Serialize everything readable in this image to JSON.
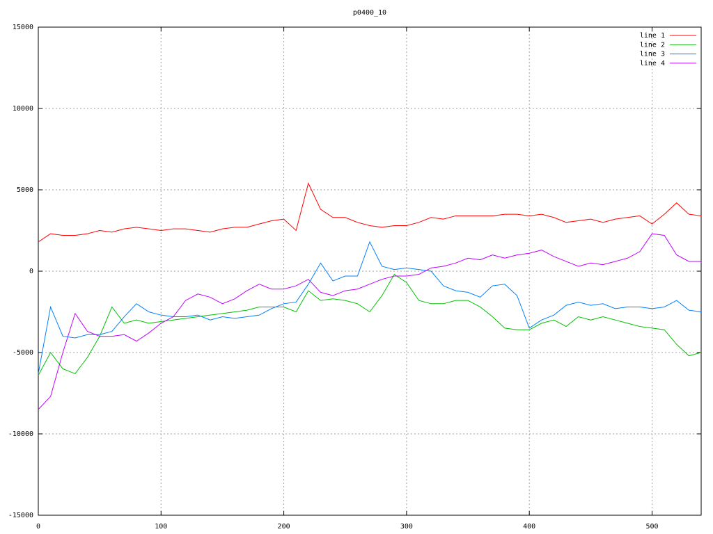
{
  "chart_data": {
    "type": "line",
    "title": "p0400_10",
    "x": [
      0,
      10,
      20,
      30,
      40,
      50,
      60,
      70,
      80,
      90,
      100,
      110,
      120,
      130,
      140,
      150,
      160,
      170,
      180,
      190,
      200,
      210,
      220,
      230,
      240,
      250,
      260,
      270,
      280,
      290,
      300,
      310,
      320,
      330,
      340,
      350,
      360,
      370,
      380,
      390,
      400,
      410,
      420,
      430,
      440,
      450,
      460,
      470,
      480,
      490,
      500,
      510,
      520,
      530,
      540
    ],
    "series": [
      {
        "name": "line 1",
        "color": "#ff0000",
        "values": [
          1800,
          2300,
          2200,
          2200,
          2300,
          2500,
          2400,
          2600,
          2700,
          2600,
          2500,
          2600,
          2600,
          2500,
          2400,
          2600,
          2700,
          2700,
          2900,
          3100,
          3200,
          2500,
          5400,
          3800,
          3300,
          3300,
          3000,
          2800,
          2700,
          2800,
          2800,
          3000,
          3300,
          3200,
          3400,
          3400,
          3400,
          3400,
          3500,
          3500,
          3400,
          3500,
          3300,
          3000,
          3100,
          3200,
          3000,
          3200,
          3300,
          3400,
          2900,
          3500,
          4200,
          3500,
          3400
        ]
      },
      {
        "name": "line 2",
        "color": "#00c000",
        "values": [
          -6400,
          -5000,
          -6000,
          -6300,
          -5300,
          -4000,
          -2200,
          -3200,
          -3000,
          -3200,
          -3100,
          -3000,
          -2900,
          -2800,
          -2700,
          -2600,
          -2500,
          -2400,
          -2200,
          -2200,
          -2200,
          -2500,
          -1200,
          -1800,
          -1700,
          -1800,
          -2000,
          -2500,
          -1500,
          -200,
          -700,
          -1800,
          -2000,
          -2000,
          -1800,
          -1800,
          -2200,
          -2800,
          -3500,
          -3600,
          -3600,
          -3200,
          -3000,
          -3400,
          -2800,
          -3000,
          -2800,
          -3000,
          -3200,
          -3400,
          -3500,
          -3600,
          -4500,
          -5200,
          -5000
        ]
      },
      {
        "name": "line 3",
        "color": "#0080ff",
        "values": [
          -6300,
          -2200,
          -4000,
          -4100,
          -3900,
          -3900,
          -3700,
          -2800,
          -2000,
          -2500,
          -2700,
          -2800,
          -2800,
          -2700,
          -3000,
          -2800,
          -2900,
          -2800,
          -2700,
          -2300,
          -2000,
          -1900,
          -800,
          500,
          -600,
          -300,
          -300,
          1800,
          300,
          100,
          200,
          100,
          0,
          -900,
          -1200,
          -1300,
          -1600,
          -900,
          -800,
          -1500,
          -3500,
          -3000,
          -2700,
          -2100,
          -1900,
          -2100,
          -2000,
          -2300,
          -2200,
          -2200,
          -2300,
          -2200,
          -1800,
          -2400,
          -2500
        ]
      },
      {
        "name": "line 4",
        "color": "#c000ff",
        "values": [
          -8500,
          -7700,
          -5000,
          -2600,
          -3700,
          -4000,
          -4000,
          -3900,
          -4300,
          -3800,
          -3200,
          -2800,
          -1800,
          -1400,
          -1600,
          -2000,
          -1700,
          -1200,
          -800,
          -1100,
          -1100,
          -900,
          -500,
          -1300,
          -1500,
          -1200,
          -1100,
          -800,
          -500,
          -300,
          -300,
          -200,
          200,
          300,
          500,
          800,
          700,
          1000,
          800,
          1000,
          1100,
          1300,
          900,
          600,
          300,
          500,
          400,
          600,
          800,
          1200,
          2300,
          2200,
          1000,
          600,
          600
        ]
      }
    ],
    "xlim": [
      0,
      540
    ],
    "xticks": [
      0,
      100,
      200,
      300,
      400,
      500
    ],
    "ylim": [
      -15000,
      15000
    ],
    "yticks": [
      -15000,
      -10000,
      -5000,
      0,
      5000,
      10000,
      15000
    ],
    "grid": true,
    "legend": "top-right"
  }
}
